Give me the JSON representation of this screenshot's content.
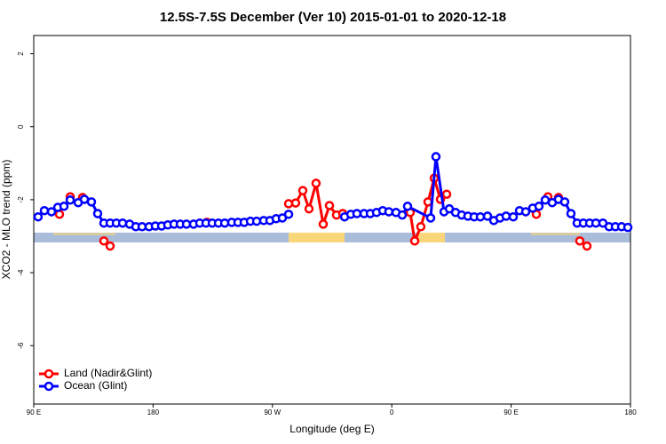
{
  "chart_data": {
    "type": "line",
    "title": "12.5S-7.5S December (Ver 10)   2015-01-01 to 2020-12-18",
    "xlabel": "Longitude (deg E)",
    "ylabel": "XCO2 - MLO trend (ppm)",
    "xlim": [
      90,
      540
    ],
    "ylim": [
      -7.6,
      2.5
    ],
    "xticks": [
      {
        "value": 90,
        "label": "90 E"
      },
      {
        "value": 180,
        "label": "180"
      },
      {
        "value": 270,
        "label": "90 W"
      },
      {
        "value": 360,
        "label": "0"
      },
      {
        "value": 450,
        "label": "90 E"
      },
      {
        "value": 540,
        "label": "180"
      }
    ],
    "yticks": [
      -6,
      -4,
      -2,
      0,
      2
    ],
    "legend": "bottom-left",
    "series": [
      {
        "name": "Land (Nadir&Glint)",
        "color": "#ff0000",
        "x": [
          109.4,
          null,
          117.5,
          null,
          126.8,
          null,
          142.9,
          147.6,
          null,
          220.6,
          null,
          282.2,
          287.5,
          292.9,
          297.6,
          302.9,
          308.3,
          313.0,
          318.3,
          323.0,
          null,
          373.9,
          377.3,
          381.9,
          387.3,
          392.0,
          396.7,
          401.4,
          null,
          469.0,
          null,
          477.7,
          null,
          485.7,
          null,
          501.8,
          507.2
        ],
        "values": [
          -2.4,
          null,
          -1.92,
          null,
          -1.94,
          null,
          -3.13,
          -3.27,
          null,
          -2.62,
          null,
          -2.11,
          -2.09,
          -1.75,
          -2.25,
          -1.55,
          -2.67,
          -2.16,
          -2.42,
          -2.38,
          null,
          -2.35,
          -3.13,
          -2.74,
          -2.06,
          -1.41,
          -1.99,
          -1.85,
          null,
          -2.4,
          null,
          -1.92,
          null,
          -1.94,
          null,
          -3.13,
          -3.27
        ]
      },
      {
        "name": "Ocean (Glint)",
        "color": "#0000ff",
        "x": [
          93.3,
          98.0,
          103.4,
          108.1,
          112.8,
          117.5,
          123.5,
          128.2,
          133.5,
          138.2,
          142.9,
          147.6,
          152.3,
          157.0,
          162.3,
          167.0,
          171.7,
          177.0,
          181.7,
          186.4,
          191.1,
          195.8,
          200.5,
          205.2,
          210.5,
          215.2,
          219.9,
          224.6,
          229.3,
          234.0,
          239.3,
          244.0,
          248.7,
          253.4,
          258.1,
          263.4,
          268.1,
          272.8,
          277.5,
          282.2,
          null,
          324.4,
          329.1,
          333.7,
          339.1,
          343.8,
          348.5,
          353.2,
          357.8,
          363.2,
          367.9,
          371.9,
          389.3,
          393.3,
          399.4,
          403.4,
          408.1,
          412.7,
          417.4,
          422.1,
          426.8,
          432.2,
          436.9,
          441.6,
          446.2,
          451.6,
          456.3,
          461.0,
          466.3,
          471.0,
          475.7,
          481.0,
          485.7,
          490.4,
          495.1,
          499.8,
          504.5,
          509.2,
          513.9,
          519.2,
          523.9,
          528.6,
          533.3,
          538.0
        ],
        "values": [
          -2.47,
          -2.3,
          -2.33,
          -2.21,
          -2.18,
          -2.01,
          -2.08,
          -1.99,
          -2.06,
          -2.38,
          -2.64,
          -2.64,
          -2.64,
          -2.64,
          -2.67,
          -2.74,
          -2.74,
          -2.74,
          -2.72,
          -2.72,
          -2.69,
          -2.67,
          -2.67,
          -2.67,
          -2.67,
          -2.64,
          -2.64,
          -2.64,
          -2.64,
          -2.64,
          -2.62,
          -2.62,
          -2.62,
          -2.59,
          -2.59,
          -2.57,
          -2.57,
          -2.52,
          -2.5,
          -2.4,
          null,
          -2.47,
          -2.4,
          -2.38,
          -2.38,
          -2.38,
          -2.35,
          -2.3,
          -2.33,
          -2.35,
          -2.42,
          -2.18,
          -2.5,
          -0.82,
          -2.33,
          -2.25,
          -2.35,
          -2.42,
          -2.45,
          -2.47,
          -2.47,
          -2.45,
          -2.57,
          -2.5,
          -2.45,
          -2.47,
          -2.3,
          -2.33,
          -2.23,
          -2.18,
          -2.01,
          -2.08,
          -1.99,
          -2.06,
          -2.38,
          -2.64,
          -2.64,
          -2.64,
          -2.64,
          -2.64,
          -2.74,
          -2.74,
          -2.74,
          -2.76
        ]
      }
    ]
  }
}
